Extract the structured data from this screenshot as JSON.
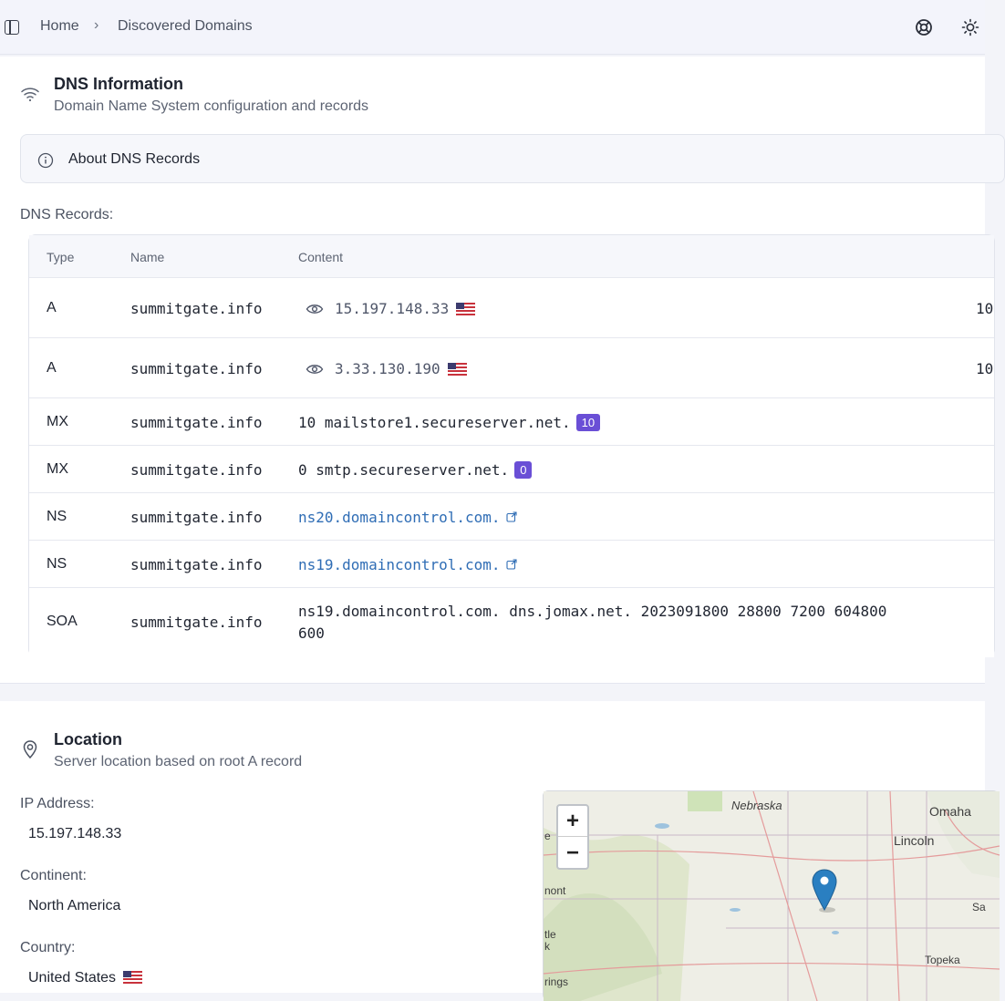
{
  "breadcrumb": {
    "home": "Home",
    "separator": "›",
    "current": "Discovered Domains"
  },
  "topbar": {
    "sidebar_toggle_icon": "sidebar-toggle-icon",
    "help_icon": "lifebuoy-icon",
    "theme_icon": "sun-icon"
  },
  "dns": {
    "title": "DNS Information",
    "subtitle": "Domain Name System configuration and records",
    "about_label": "About DNS Records",
    "records_label": "DNS Records:",
    "columns": {
      "type": "Type",
      "name": "Name",
      "content": "Content"
    },
    "records": [
      {
        "type": "A",
        "name": "summitgate.info",
        "content": "15.197.148.33",
        "trailing": "10"
      },
      {
        "type": "A",
        "name": "summitgate.info",
        "content": "3.33.130.190",
        "trailing": "10"
      },
      {
        "type": "MX",
        "name": "summitgate.info",
        "content": "10 mailstore1.secureserver.net.",
        "badge": "10"
      },
      {
        "type": "MX",
        "name": "summitgate.info",
        "content": "0 smtp.secureserver.net.",
        "badge": "0"
      },
      {
        "type": "NS",
        "name": "summitgate.info",
        "content": "ns20.domaincontrol.com."
      },
      {
        "type": "NS",
        "name": "summitgate.info",
        "content": "ns19.domaincontrol.com."
      },
      {
        "type": "SOA",
        "name": "summitgate.info",
        "content_line1": "ns19.domaincontrol.com. dns.jomax.net. 2023091800 28800 7200 604800",
        "content_line2": "600"
      }
    ]
  },
  "location": {
    "title": "Location",
    "subtitle": "Server location based on root A record",
    "ip_label": "IP Address:",
    "ip_value": "15.197.148.33",
    "continent_label": "Continent:",
    "continent_value": "North America",
    "country_label": "Country:",
    "country_value": "United States",
    "map": {
      "zoom_in": "+",
      "zoom_out": "−",
      "labels": {
        "nebraska": "Nebraska",
        "omaha": "Omaha",
        "lincoln": "Lincoln",
        "topeka": "Topeka",
        "sa": "Sa",
        "e": "e",
        "nont": "nont",
        "tle": "tle",
        "k": "k",
        "rings": "rings"
      }
    }
  },
  "colors": {
    "accent": "#6a4fd6",
    "link": "#2f6db5",
    "map_pin": "#2a7fc1"
  }
}
